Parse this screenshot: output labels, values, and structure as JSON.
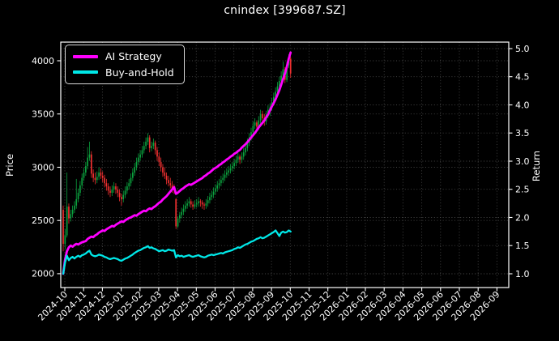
{
  "chart_data": {
    "type": "candlestick+line",
    "title": "cnindex [399687.SZ]",
    "background_color": "#000000",
    "text_color": "#ffffff",
    "grid": {
      "on": true,
      "style": "dotted",
      "color": "#464646"
    },
    "x_axis": {
      "tick_labels": [
        "2024-10",
        "2024-11",
        "2024-12",
        "2025-01",
        "2025-02",
        "2025-03",
        "2025-04",
        "2025-05",
        "2025-06",
        "2025-07",
        "2025-08",
        "2025-09",
        "2025-10",
        "2025-11",
        "2025-12",
        "2026-01",
        "2026-02",
        "2026-03",
        "2026-04",
        "2026-05",
        "2026-06",
        "2026-07",
        "2026-08",
        "2026-09"
      ],
      "label_rotation_deg": 45,
      "data_end_label": "2025-10"
    },
    "y_left": {
      "label": "Price",
      "ticks": [
        2000,
        2500,
        3000,
        3500,
        4000
      ],
      "range": [
        1870,
        4175
      ]
    },
    "y_right": {
      "label": "Return",
      "ticks": [
        "1.0",
        "1.5",
        "2.0",
        "2.5",
        "3.0",
        "3.5",
        "4.0",
        "4.5",
        "5.0"
      ],
      "range": [
        0.755,
        5.115
      ]
    },
    "legend": {
      "position": "upper-left",
      "items": [
        {
          "label": "AI Strategy",
          "color": "#ff00ff"
        },
        {
          "label": "Buy-and-Hold",
          "color": "#00e8e8"
        }
      ]
    },
    "series": [
      {
        "name": "Price OHLC candles",
        "type": "candlestick",
        "axis": "left",
        "up_color": "#0ba13e",
        "down_color": "#f13030",
        "t_start_month": 0,
        "t_step_months": 0.1,
        "ohlc": [
          [
            2600,
            2640,
            2210,
            2280
          ],
          [
            2280,
            2420,
            2230,
            2360
          ],
          [
            2360,
            2950,
            2340,
            2630
          ],
          [
            2630,
            2660,
            2470,
            2520
          ],
          [
            2520,
            2600,
            2490,
            2560
          ],
          [
            2560,
            2640,
            2530,
            2600
          ],
          [
            2600,
            2680,
            2570,
            2640
          ],
          [
            2640,
            2890,
            2610,
            2700
          ],
          [
            2700,
            2800,
            2670,
            2760
          ],
          [
            2760,
            2870,
            2730,
            2830
          ],
          [
            2830,
            2940,
            2800,
            2900
          ],
          [
            2900,
            2990,
            2870,
            2950
          ],
          [
            2950,
            3050,
            2920,
            3010
          ],
          [
            3010,
            3190,
            2980,
            3090
          ],
          [
            3090,
            3240,
            3060,
            3120
          ],
          [
            3120,
            3150,
            2900,
            2940
          ],
          [
            2940,
            2980,
            2860,
            2900
          ],
          [
            2900,
            2950,
            2840,
            2880
          ],
          [
            2880,
            2960,
            2850,
            2910
          ],
          [
            2910,
            3000,
            2880,
            2950
          ],
          [
            2950,
            2990,
            2890,
            2920
          ],
          [
            2920,
            2960,
            2860,
            2900
          ],
          [
            2900,
            2930,
            2810,
            2850
          ],
          [
            2850,
            2890,
            2780,
            2820
          ],
          [
            2820,
            2850,
            2740,
            2780
          ],
          [
            2780,
            2820,
            2720,
            2760
          ],
          [
            2760,
            2830,
            2730,
            2790
          ],
          [
            2790,
            2860,
            2760,
            2820
          ],
          [
            2820,
            2850,
            2750,
            2790
          ],
          [
            2790,
            2820,
            2720,
            2760
          ],
          [
            2760,
            2790,
            2680,
            2720
          ],
          [
            2720,
            2750,
            2640,
            2700
          ],
          [
            2700,
            2780,
            2670,
            2740
          ],
          [
            2740,
            2820,
            2710,
            2780
          ],
          [
            2780,
            2860,
            2750,
            2820
          ],
          [
            2820,
            2890,
            2790,
            2850
          ],
          [
            2850,
            2940,
            2820,
            2900
          ],
          [
            2900,
            2990,
            2870,
            2950
          ],
          [
            2950,
            3040,
            2920,
            3000
          ],
          [
            3000,
            3090,
            2970,
            3050
          ],
          [
            3050,
            3130,
            3020,
            3090
          ],
          [
            3090,
            3160,
            3060,
            3120
          ],
          [
            3120,
            3200,
            3090,
            3160
          ],
          [
            3160,
            3240,
            3130,
            3200
          ],
          [
            3200,
            3280,
            3170,
            3240
          ],
          [
            3240,
            3320,
            3210,
            3280
          ],
          [
            3280,
            3300,
            3140,
            3180
          ],
          [
            3180,
            3240,
            3150,
            3200
          ],
          [
            3200,
            3270,
            3170,
            3230
          ],
          [
            3230,
            3250,
            3120,
            3160
          ],
          [
            3160,
            3190,
            3060,
            3100
          ],
          [
            3100,
            3140,
            3010,
            3050
          ],
          [
            3050,
            3090,
            2960,
            3000
          ],
          [
            3000,
            3030,
            2910,
            2950
          ],
          [
            2950,
            3000,
            2890,
            2920
          ],
          [
            2920,
            2950,
            2840,
            2880
          ],
          [
            2880,
            2920,
            2820,
            2850
          ],
          [
            2850,
            2900,
            2800,
            2830
          ],
          [
            2830,
            2870,
            2760,
            2800
          ],
          [
            2800,
            2840,
            2750,
            2780
          ],
          [
            2700,
            2710,
            2420,
            2445
          ],
          [
            2445,
            2540,
            2430,
            2520
          ],
          [
            2520,
            2580,
            2480,
            2550
          ],
          [
            2550,
            2620,
            2520,
            2580
          ],
          [
            2580,
            2650,
            2550,
            2610
          ],
          [
            2610,
            2680,
            2580,
            2640
          ],
          [
            2640,
            2700,
            2610,
            2660
          ],
          [
            2660,
            2720,
            2630,
            2680
          ],
          [
            2680,
            2700,
            2620,
            2650
          ],
          [
            2650,
            2680,
            2600,
            2630
          ],
          [
            2630,
            2690,
            2610,
            2650
          ],
          [
            2650,
            2700,
            2620,
            2660
          ],
          [
            2660,
            2720,
            2630,
            2680
          ],
          [
            2680,
            2700,
            2630,
            2670
          ],
          [
            2670,
            2690,
            2610,
            2650
          ],
          [
            2650,
            2670,
            2600,
            2640
          ],
          [
            2640,
            2700,
            2610,
            2660
          ],
          [
            2660,
            2730,
            2630,
            2690
          ],
          [
            2690,
            2760,
            2660,
            2720
          ],
          [
            2720,
            2780,
            2690,
            2740
          ],
          [
            2740,
            2810,
            2710,
            2770
          ],
          [
            2770,
            2840,
            2740,
            2800
          ],
          [
            2800,
            2870,
            2770,
            2830
          ],
          [
            2830,
            2890,
            2800,
            2850
          ],
          [
            2850,
            2920,
            2820,
            2880
          ],
          [
            2880,
            2940,
            2850,
            2900
          ],
          [
            2900,
            2970,
            2870,
            2930
          ],
          [
            2930,
            2990,
            2900,
            2950
          ],
          [
            2950,
            3010,
            2920,
            2970
          ],
          [
            2970,
            3030,
            2940,
            2990
          ],
          [
            2990,
            3050,
            2960,
            3010
          ],
          [
            3010,
            3080,
            2980,
            3040
          ],
          [
            3040,
            3110,
            3010,
            3070
          ],
          [
            3070,
            3160,
            3040,
            3100
          ],
          [
            3100,
            3120,
            3030,
            3070
          ],
          [
            3070,
            3140,
            3040,
            3100
          ],
          [
            3100,
            3180,
            3070,
            3140
          ],
          [
            3140,
            3220,
            3110,
            3180
          ],
          [
            3180,
            3270,
            3150,
            3230
          ],
          [
            3230,
            3320,
            3200,
            3280
          ],
          [
            3280,
            3370,
            3250,
            3330
          ],
          [
            3330,
            3430,
            3300,
            3390
          ],
          [
            3390,
            3460,
            3360,
            3420
          ],
          [
            3420,
            3440,
            3340,
            3380
          ],
          [
            3380,
            3480,
            3350,
            3440
          ],
          [
            3440,
            3540,
            3410,
            3500
          ],
          [
            3500,
            3530,
            3420,
            3460
          ],
          [
            3460,
            3500,
            3390,
            3430
          ],
          [
            3430,
            3530,
            3400,
            3490
          ],
          [
            3490,
            3580,
            3460,
            3540
          ],
          [
            3540,
            3600,
            3480,
            3560
          ],
          [
            3560,
            3650,
            3530,
            3610
          ],
          [
            3610,
            3700,
            3580,
            3660
          ],
          [
            3660,
            3750,
            3630,
            3710
          ],
          [
            3710,
            3800,
            3680,
            3760
          ],
          [
            3760,
            3850,
            3730,
            3810
          ],
          [
            3810,
            3900,
            3780,
            3860
          ],
          [
            3860,
            3990,
            3830,
            3920
          ],
          [
            3920,
            3940,
            3790,
            3820
          ],
          [
            3820,
            3990,
            3800,
            3960
          ],
          [
            3960,
            4060,
            3930,
            4020
          ],
          [
            4020,
            4040,
            3840,
            3880
          ]
        ]
      },
      {
        "name": "AI Strategy",
        "type": "line",
        "axis": "right",
        "color": "#ff00ff",
        "t_start_month": 0,
        "t_step_months": 0.1,
        "values": [
          1.0,
          1.25,
          1.4,
          1.47,
          1.5,
          1.48,
          1.51,
          1.53,
          1.52,
          1.54,
          1.56,
          1.57,
          1.58,
          1.62,
          1.64,
          1.66,
          1.65,
          1.68,
          1.7,
          1.73,
          1.75,
          1.77,
          1.76,
          1.79,
          1.81,
          1.83,
          1.85,
          1.84,
          1.87,
          1.89,
          1.91,
          1.93,
          1.92,
          1.95,
          1.97,
          1.99,
          2.0,
          2.02,
          2.04,
          2.03,
          2.06,
          2.08,
          2.1,
          2.12,
          2.11,
          2.14,
          2.16,
          2.15,
          2.18,
          2.2,
          2.23,
          2.26,
          2.28,
          2.32,
          2.35,
          2.38,
          2.42,
          2.46,
          2.5,
          2.54,
          2.42,
          2.44,
          2.47,
          2.5,
          2.52,
          2.55,
          2.57,
          2.59,
          2.58,
          2.6,
          2.62,
          2.64,
          2.66,
          2.68,
          2.7,
          2.73,
          2.75,
          2.78,
          2.8,
          2.83,
          2.86,
          2.88,
          2.9,
          2.93,
          2.95,
          2.98,
          3.0,
          3.03,
          3.05,
          3.08,
          3.1,
          3.13,
          3.15,
          3.18,
          3.2,
          3.24,
          3.27,
          3.3,
          3.34,
          3.38,
          3.42,
          3.46,
          3.5,
          3.55,
          3.6,
          3.64,
          3.68,
          3.72,
          3.78,
          3.83,
          3.9,
          3.97,
          4.03,
          4.1,
          4.18,
          4.26,
          4.36,
          4.46,
          4.56,
          4.68,
          4.82,
          4.93
        ]
      },
      {
        "name": "Buy-and-Hold",
        "type": "line",
        "axis": "right",
        "color": "#00e8e8",
        "t_start_month": 0,
        "t_step_months": 0.1,
        "values": [
          1.0,
          1.2,
          1.32,
          1.24,
          1.28,
          1.3,
          1.27,
          1.3,
          1.32,
          1.3,
          1.33,
          1.34,
          1.36,
          1.39,
          1.41,
          1.34,
          1.32,
          1.31,
          1.32,
          1.34,
          1.33,
          1.32,
          1.3,
          1.29,
          1.27,
          1.26,
          1.27,
          1.28,
          1.27,
          1.26,
          1.24,
          1.23,
          1.25,
          1.27,
          1.28,
          1.3,
          1.32,
          1.34,
          1.37,
          1.39,
          1.41,
          1.42,
          1.44,
          1.46,
          1.47,
          1.49,
          1.46,
          1.47,
          1.45,
          1.44,
          1.42,
          1.4,
          1.41,
          1.42,
          1.4,
          1.41,
          1.43,
          1.42,
          1.41,
          1.42,
          1.29,
          1.33,
          1.31,
          1.32,
          1.3,
          1.31,
          1.32,
          1.33,
          1.31,
          1.3,
          1.31,
          1.32,
          1.33,
          1.31,
          1.3,
          1.29,
          1.3,
          1.32,
          1.33,
          1.34,
          1.33,
          1.34,
          1.35,
          1.36,
          1.37,
          1.36,
          1.38,
          1.39,
          1.4,
          1.41,
          1.42,
          1.44,
          1.45,
          1.47,
          1.46,
          1.48,
          1.5,
          1.52,
          1.53,
          1.55,
          1.57,
          1.58,
          1.6,
          1.62,
          1.63,
          1.65,
          1.63,
          1.64,
          1.66,
          1.68,
          1.7,
          1.72,
          1.74,
          1.77,
          1.72,
          1.67,
          1.73,
          1.75,
          1.73,
          1.74,
          1.77,
          1.75
        ]
      }
    ]
  }
}
